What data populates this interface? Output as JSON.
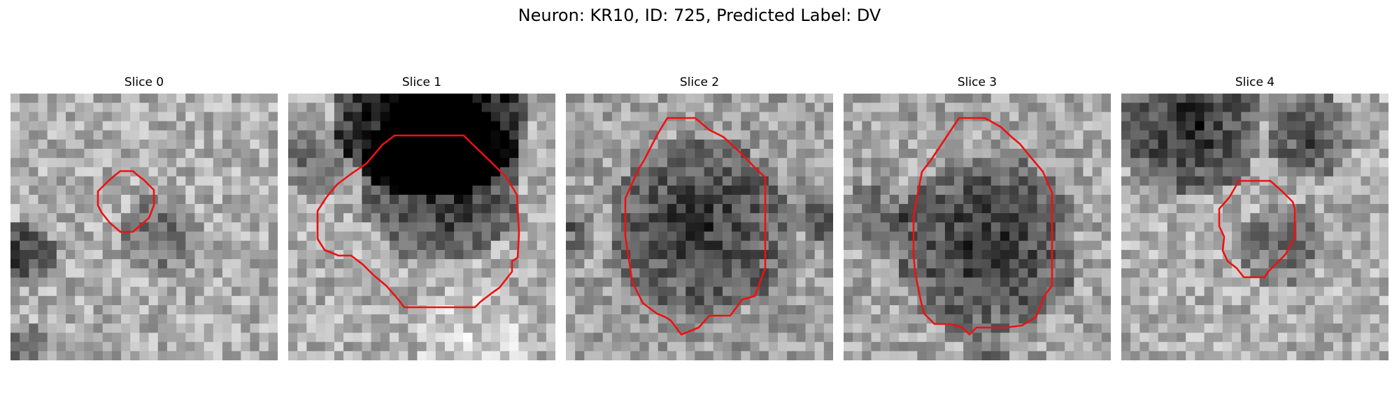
{
  "figure": {
    "title": "Neuron: KR10, ID: 725, Predicted Label: DV"
  },
  "colors": {
    "contour": "#ee1111",
    "background": "#ffffff"
  },
  "panels": [
    {
      "title": "Slice 0"
    },
    {
      "title": "Slice 1"
    },
    {
      "title": "Slice 2"
    },
    {
      "title": "Slice 3"
    },
    {
      "title": "Slice 4"
    }
  ]
}
